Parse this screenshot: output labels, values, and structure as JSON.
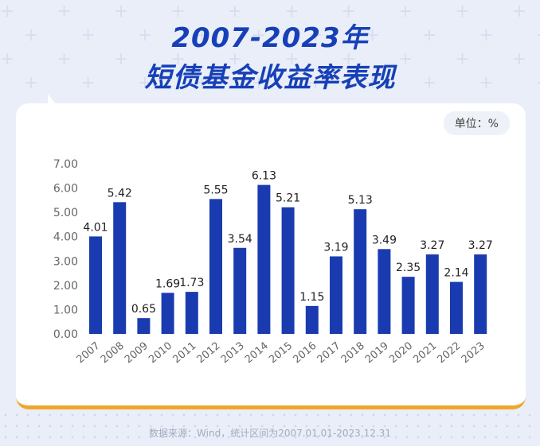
{
  "header": {
    "title_line1": "2007-2023年",
    "title_line2": "短债基金收益率表现"
  },
  "unit_label": "单位：%",
  "source": "数据来源：Wind，统计区间为2007.01.01-2023.12.31",
  "colors": {
    "bar": "#1a3bb0",
    "title": "#1740b8",
    "accent": "#f0a62c"
  },
  "chart_data": {
    "type": "bar",
    "categories": [
      "2007",
      "2008",
      "2009",
      "2010",
      "2011",
      "2012",
      "2013",
      "2014",
      "2015",
      "2016",
      "2017",
      "2018",
      "2019",
      "2020",
      "2021",
      "2022",
      "2023"
    ],
    "values": [
      4.01,
      5.42,
      0.65,
      1.69,
      1.73,
      5.55,
      3.54,
      6.13,
      5.21,
      1.15,
      3.19,
      5.13,
      3.49,
      2.35,
      3.27,
      2.14,
      3.27
    ],
    "value_labels": [
      "4.01",
      "5.42",
      "0.65",
      "1.69",
      "1.73",
      "5.55",
      "3.54",
      "6.13",
      "5.21",
      "1.15",
      "3.19",
      "5.13",
      "3.49",
      "2.35",
      "3.27",
      "2.14",
      "3.27"
    ],
    "yticks": [
      "0.00",
      "1.00",
      "2.00",
      "3.00",
      "4.00",
      "5.00",
      "6.00",
      "7.00"
    ],
    "ylim": [
      0,
      7
    ],
    "grid": false,
    "legend": "none"
  }
}
